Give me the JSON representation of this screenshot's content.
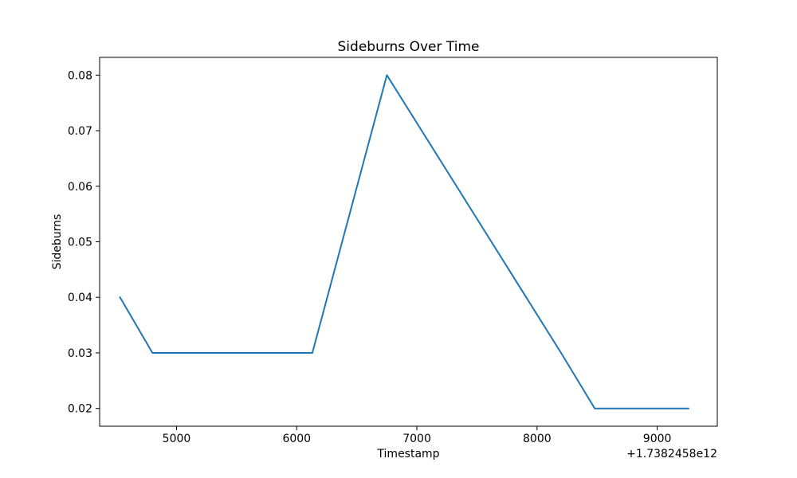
{
  "chart_data": {
    "type": "line",
    "title": "Sideburns Over Time",
    "xlabel": "Timestamp",
    "ylabel": "Sideburns",
    "x_offset_label": "+1.7382458e12",
    "xlim": [
      4360,
      9500
    ],
    "ylim": [
      0.0168,
      0.0832
    ],
    "xticks": [
      5000,
      6000,
      7000,
      8000,
      9000
    ],
    "yticks": [
      0.02,
      0.03,
      0.04,
      0.05,
      0.06,
      0.07,
      0.08
    ],
    "xtick_labels": [
      "5000",
      "6000",
      "7000",
      "8000",
      "9000"
    ],
    "ytick_labels": [
      "0.02",
      "0.03",
      "0.04",
      "0.05",
      "0.06",
      "0.07",
      "0.08"
    ],
    "grid": false,
    "series": [
      {
        "color": "#1f77b4",
        "x": [
          4530,
          4800,
          6130,
          6750,
          8200,
          8480,
          9260
        ],
        "y": [
          0.04,
          0.03,
          0.03,
          0.08,
          0.03,
          0.02,
          0.02
        ]
      }
    ]
  }
}
